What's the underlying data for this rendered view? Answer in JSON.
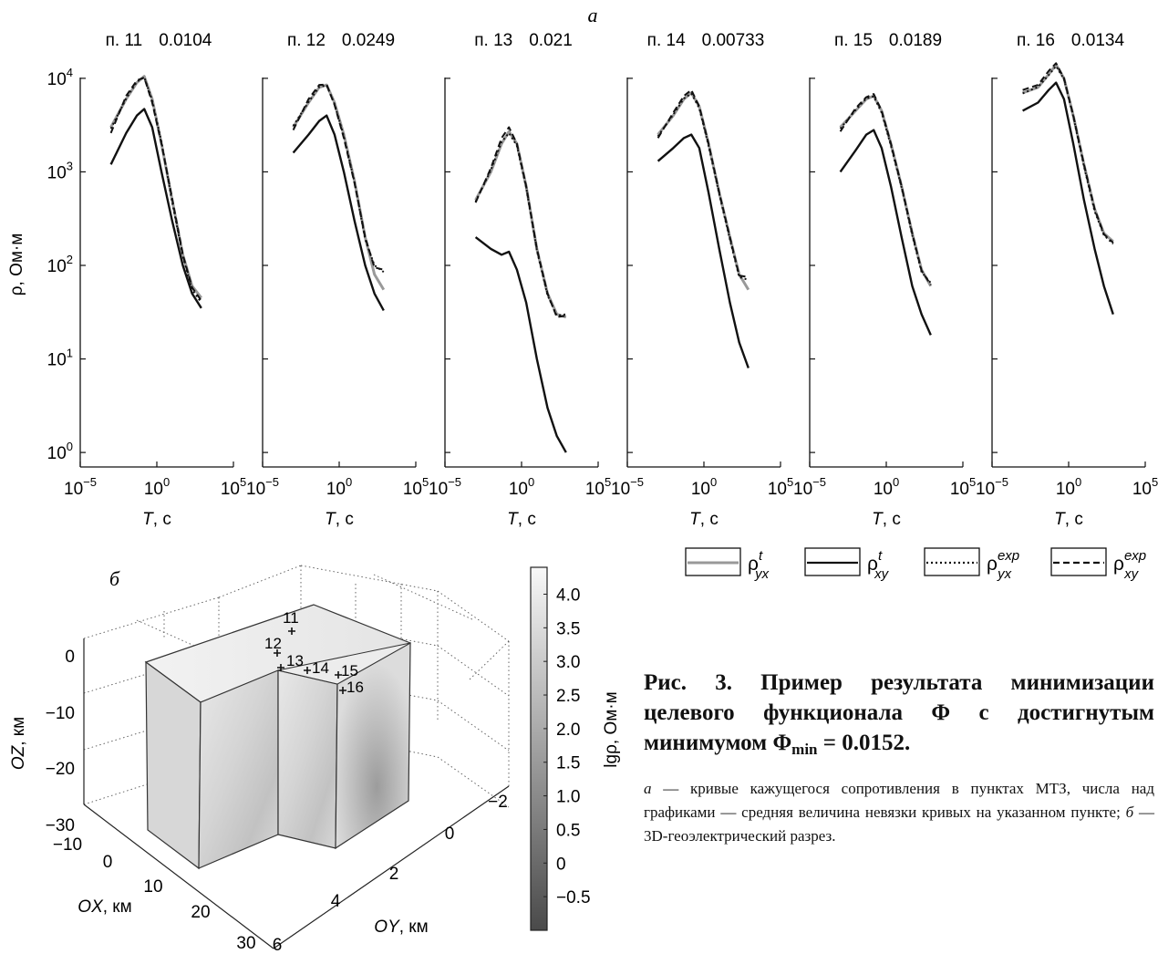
{
  "figure": {
    "label_a": "а",
    "label_b": "б",
    "station_prefix": "п.",
    "y_axis_label": "ρ, Ом·м",
    "x_axis_label": "T, с",
    "legend": [
      {
        "base": "ρ",
        "sup": "t",
        "sub": "yx",
        "style": "gray-solid",
        "color": "#999999"
      },
      {
        "base": "ρ",
        "sup": "t",
        "sub": "xy",
        "style": "black-solid",
        "color": "#111111"
      },
      {
        "base": "ρ",
        "sup": "exp",
        "sub": "yx",
        "style": "black-dotted",
        "color": "#111111"
      },
      {
        "base": "ρ",
        "sup": "exp",
        "sub": "xy",
        "style": "black-dashed",
        "color": "#111111"
      }
    ]
  },
  "chart_data": [
    {
      "type": "line",
      "station": "11",
      "misfit": "0.0104",
      "x_scale": "log",
      "y_scale": "log",
      "xlim": [
        1e-05,
        100000
      ],
      "ylim": [
        0.7,
        20000
      ],
      "x_ticks": [
        "10^-5",
        "10^0",
        "10^5"
      ],
      "y_ticks": [
        "10^0",
        "10^1",
        "10^2",
        "10^3",
        "10^4"
      ],
      "series": [
        {
          "name": "ρt_yx",
          "x": [
            0.001,
            0.01,
            0.05,
            0.15,
            0.5,
            2,
            10,
            50,
            200,
            800
          ],
          "y": [
            3000,
            6000,
            9000,
            10500,
            6000,
            2000,
            500,
            130,
            60,
            45
          ]
        },
        {
          "name": "ρt_xy",
          "x": [
            0.001,
            0.01,
            0.05,
            0.15,
            0.5,
            2,
            10,
            50,
            200,
            800
          ],
          "y": [
            1200,
            2600,
            4000,
            4700,
            3000,
            1000,
            300,
            100,
            50,
            35
          ]
        },
        {
          "name": "ρexp_yx",
          "x": [
            0.001,
            0.01,
            0.05,
            0.15,
            0.5,
            2,
            10,
            50,
            200,
            800
          ],
          "y": [
            2900,
            6100,
            9200,
            10300,
            5800,
            2100,
            480,
            125,
            55,
            40
          ]
        },
        {
          "name": "ρexp_xy",
          "x": [
            0.001,
            0.01,
            0.05,
            0.15,
            0.5,
            2,
            10,
            50,
            200,
            800
          ],
          "y": [
            2600,
            6500,
            9500,
            10200,
            5500,
            2000,
            520,
            130,
            58,
            42
          ]
        }
      ]
    },
    {
      "type": "line",
      "station": "12",
      "misfit": "0.0249",
      "x_scale": "log",
      "y_scale": "log",
      "xlim": [
        1e-05,
        100000
      ],
      "ylim": [
        0.7,
        20000
      ],
      "x_ticks": [
        "10^-5",
        "10^0",
        "10^5"
      ],
      "y_ticks": [
        "10^0",
        "10^1",
        "10^2",
        "10^3",
        "10^4"
      ],
      "series": [
        {
          "name": "ρt_yx",
          "x": [
            0.001,
            0.01,
            0.05,
            0.15,
            0.5,
            2,
            10,
            50,
            200,
            800
          ],
          "y": [
            3000,
            5500,
            8000,
            8500,
            5500,
            2500,
            800,
            200,
            80,
            55
          ]
        },
        {
          "name": "ρt_xy",
          "x": [
            0.001,
            0.01,
            0.05,
            0.15,
            0.5,
            2,
            10,
            50,
            200,
            800
          ],
          "y": [
            1600,
            2500,
            3500,
            4000,
            2500,
            1000,
            300,
            100,
            50,
            33
          ]
        },
        {
          "name": "ρexp_yx",
          "x": [
            0.001,
            0.01,
            0.05,
            0.15,
            0.5,
            2,
            10,
            50,
            200,
            800
          ],
          "y": [
            3100,
            5600,
            8100,
            8400,
            5300,
            2400,
            780,
            190,
            100,
            85
          ]
        },
        {
          "name": "ρexp_xy",
          "x": [
            0.001,
            0.01,
            0.05,
            0.15,
            0.5,
            2,
            10,
            50,
            200,
            800
          ],
          "y": [
            2800,
            6000,
            8500,
            8600,
            5200,
            2300,
            760,
            200,
            95,
            90
          ]
        }
      ]
    },
    {
      "type": "line",
      "station": "13",
      "misfit": "0.021",
      "x_scale": "log",
      "y_scale": "log",
      "xlim": [
        1e-05,
        100000
      ],
      "ylim": [
        0.7,
        20000
      ],
      "x_ticks": [
        "10^-5",
        "10^0",
        "10^5"
      ],
      "y_ticks": [
        "10^0",
        "10^1",
        "10^2",
        "10^3",
        "10^4"
      ],
      "series": [
        {
          "name": "ρt_yx",
          "x": [
            0.001,
            0.01,
            0.05,
            0.15,
            0.5,
            2,
            10,
            50,
            200,
            800
          ],
          "y": [
            500,
            1000,
            2000,
            2700,
            2000,
            700,
            150,
            50,
            30,
            28
          ]
        },
        {
          "name": "ρt_xy",
          "x": [
            0.001,
            0.01,
            0.05,
            0.15,
            0.5,
            2,
            10,
            50,
            200,
            800
          ],
          "y": [
            200,
            150,
            130,
            140,
            90,
            40,
            10,
            3,
            1.5,
            1.0
          ]
        },
        {
          "name": "ρexp_yx",
          "x": [
            0.001,
            0.01,
            0.05,
            0.15,
            0.5,
            2,
            10,
            50,
            200,
            800
          ],
          "y": [
            480,
            1050,
            2100,
            2600,
            1900,
            680,
            145,
            48,
            29,
            30
          ]
        },
        {
          "name": "ρexp_xy",
          "x": [
            0.001,
            0.01,
            0.05,
            0.15,
            0.5,
            2,
            10,
            50,
            200,
            800
          ],
          "y": [
            470,
            1100,
            2300,
            3000,
            2000,
            700,
            150,
            50,
            28,
            29
          ]
        }
      ]
    },
    {
      "type": "line",
      "station": "14",
      "misfit": "0.00733",
      "x_scale": "log",
      "y_scale": "log",
      "xlim": [
        1e-05,
        100000
      ],
      "ylim": [
        0.7,
        20000
      ],
      "x_ticks": [
        "10^-5",
        "10^0",
        "10^5"
      ],
      "y_ticks": [
        "10^0",
        "10^1",
        "10^2",
        "10^3",
        "10^4"
      ],
      "series": [
        {
          "name": "ρt_yx",
          "x": [
            0.001,
            0.01,
            0.05,
            0.15,
            0.5,
            2,
            10,
            50,
            200,
            800
          ],
          "y": [
            2500,
            4000,
            6000,
            7000,
            5000,
            2000,
            600,
            200,
            80,
            55
          ]
        },
        {
          "name": "ρt_xy",
          "x": [
            0.001,
            0.01,
            0.05,
            0.15,
            0.5,
            2,
            10,
            50,
            200,
            800
          ],
          "y": [
            1300,
            1800,
            2300,
            2500,
            1800,
            600,
            150,
            40,
            15,
            8
          ]
        },
        {
          "name": "ρexp_yx",
          "x": [
            0.001,
            0.01,
            0.05,
            0.15,
            0.5,
            2,
            10,
            50,
            200,
            800
          ],
          "y": [
            2400,
            4100,
            6100,
            6900,
            4800,
            1900,
            580,
            190,
            75,
            70
          ]
        },
        {
          "name": "ρexp_xy",
          "x": [
            0.001,
            0.01,
            0.05,
            0.15,
            0.5,
            2,
            10,
            50,
            200,
            800
          ],
          "y": [
            2300,
            4300,
            6500,
            7500,
            5000,
            2000,
            600,
            200,
            78,
            75
          ]
        }
      ]
    },
    {
      "type": "line",
      "station": "15",
      "misfit": "0.0189",
      "x_scale": "log",
      "y_scale": "log",
      "xlim": [
        1e-05,
        100000
      ],
      "ylim": [
        0.7,
        20000
      ],
      "x_ticks": [
        "10^-5",
        "10^0",
        "10^5"
      ],
      "y_ticks": [
        "10^0",
        "10^1",
        "10^2",
        "10^3",
        "10^4"
      ],
      "series": [
        {
          "name": "ρt_yx",
          "x": [
            0.001,
            0.01,
            0.05,
            0.15,
            0.5,
            2,
            10,
            50,
            200,
            800
          ],
          "y": [
            3000,
            4500,
            6000,
            6500,
            4500,
            2000,
            700,
            220,
            90,
            60
          ]
        },
        {
          "name": "ρt_xy",
          "x": [
            0.001,
            0.01,
            0.05,
            0.15,
            0.5,
            2,
            10,
            50,
            200,
            800
          ],
          "y": [
            1000,
            1700,
            2500,
            2800,
            1800,
            700,
            200,
            60,
            30,
            18
          ]
        },
        {
          "name": "ρexp_yx",
          "x": [
            0.001,
            0.01,
            0.05,
            0.15,
            0.5,
            2,
            10,
            50,
            200,
            800
          ],
          "y": [
            2900,
            4600,
            6100,
            6400,
            4300,
            1900,
            680,
            210,
            85,
            65
          ]
        },
        {
          "name": "ρexp_xy",
          "x": [
            0.001,
            0.01,
            0.05,
            0.15,
            0.5,
            2,
            10,
            50,
            200,
            800
          ],
          "y": [
            2700,
            4800,
            6300,
            6800,
            4500,
            2000,
            700,
            220,
            88,
            62
          ]
        }
      ]
    },
    {
      "type": "line",
      "station": "16",
      "misfit": "0.0134",
      "x_scale": "log",
      "y_scale": "log",
      "xlim": [
        1e-05,
        100000
      ],
      "ylim": [
        0.7,
        20000
      ],
      "x_ticks": [
        "10^-5",
        "10^0",
        "10^5"
      ],
      "y_ticks": [
        "10^0",
        "10^1",
        "10^2",
        "10^3",
        "10^4"
      ],
      "series": [
        {
          "name": "ρt_yx",
          "x": [
            0.001,
            0.01,
            0.05,
            0.15,
            0.5,
            2,
            10,
            50,
            200,
            800
          ],
          "y": [
            7000,
            8000,
            11000,
            14000,
            10000,
            4000,
            1200,
            400,
            220,
            180
          ]
        },
        {
          "name": "ρt_xy",
          "x": [
            0.001,
            0.01,
            0.05,
            0.15,
            0.5,
            2,
            10,
            50,
            200,
            800
          ],
          "y": [
            4500,
            5500,
            7500,
            9000,
            6000,
            2000,
            500,
            150,
            60,
            30
          ]
        },
        {
          "name": "ρexp_yx",
          "x": [
            0.001,
            0.01,
            0.05,
            0.15,
            0.5,
            2,
            10,
            50,
            200,
            800
          ],
          "y": [
            6900,
            8100,
            10800,
            13500,
            9800,
            3900,
            1150,
            380,
            210,
            170
          ]
        },
        {
          "name": "ρexp_xy",
          "x": [
            0.001,
            0.01,
            0.05,
            0.15,
            0.5,
            2,
            10,
            50,
            200,
            800
          ],
          "y": [
            7500,
            8500,
            12000,
            14500,
            10000,
            4000,
            1200,
            400,
            215,
            175
          ]
        }
      ]
    }
  ],
  "model3d": {
    "z_axis_label": "OZ, км",
    "x_axis_label": "OX, км",
    "y_axis_label": "OY, км",
    "z_ticks": [
      "0",
      "−10",
      "−20",
      "−30"
    ],
    "x_ticks": [
      "−10",
      "0",
      "10",
      "20",
      "30"
    ],
    "y_ticks": [
      "−2",
      "0",
      "2",
      "4",
      "6"
    ],
    "stations": [
      "11",
      "12",
      "13",
      "14",
      "15",
      "16"
    ],
    "colorbar_label": "lgρ, Ом·м",
    "colorbar_ticks": [
      "4.0",
      "3.5",
      "3.0",
      "2.5",
      "2.0",
      "1.5",
      "1.0",
      "0.5",
      "0",
      "−0.5"
    ],
    "colorbar_range": [
      -1.0,
      4.4
    ]
  },
  "caption": {
    "title_main": "Рис. 3. Пример результата минимизации целевого функционала Φ с достигнутым минимумом Φ",
    "title_sub": "min",
    "title_tail": " = 0.0152.",
    "label_a": "а",
    "text_a": " — кривые кажущегося сопротивления в пунктах МТЗ, числа над графиками — средняя величина невязки кривых на указанном пункте; ",
    "label_b": "б",
    "text_b": " — 3D-геоэлектрический разрез."
  }
}
